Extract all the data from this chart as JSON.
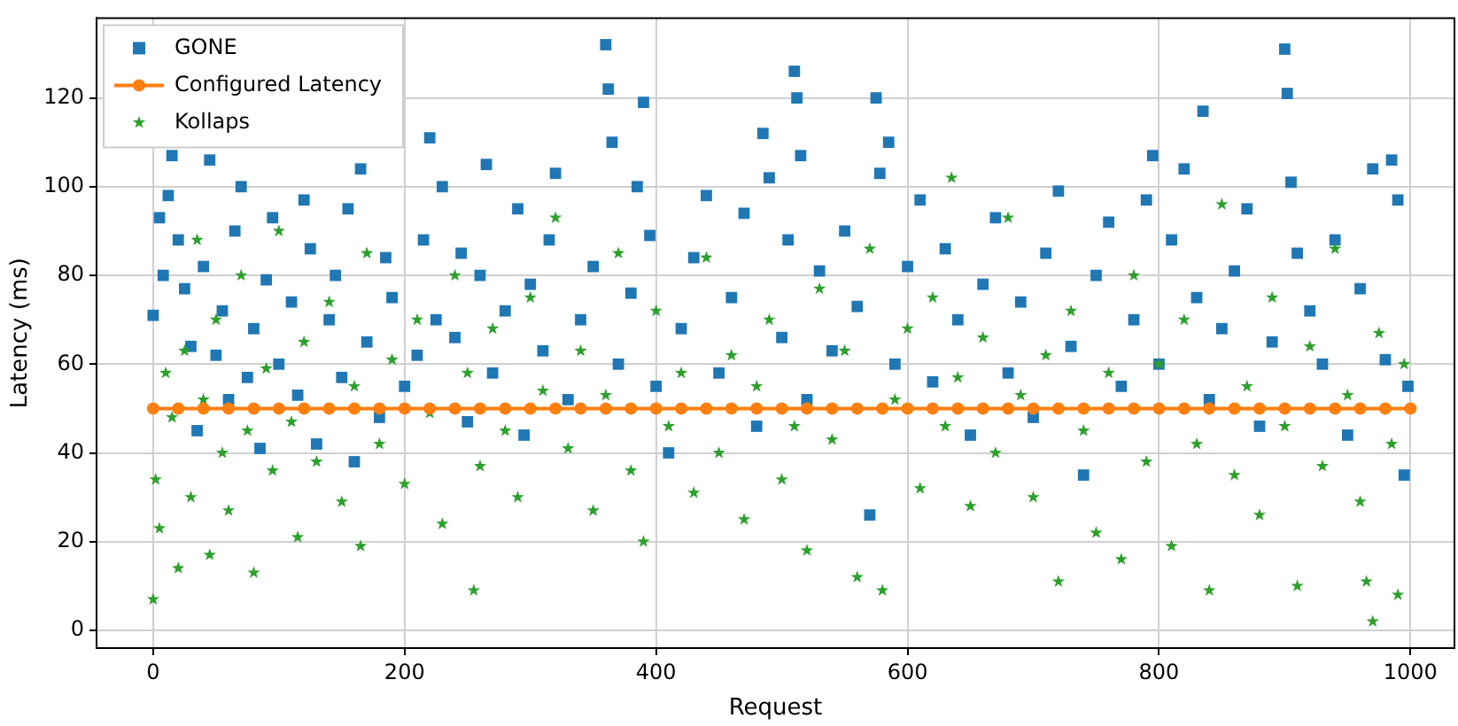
{
  "chart_data": {
    "type": "scatter",
    "xlabel": "Request",
    "ylabel": "Latency (ms)",
    "xlim": [
      -45,
      1035
    ],
    "ylim": [
      -4,
      138
    ],
    "xticks": [
      0,
      200,
      400,
      600,
      800,
      1000
    ],
    "yticks": [
      0,
      20,
      40,
      60,
      80,
      100,
      120
    ],
    "grid": true,
    "legend": "top left",
    "series": [
      {
        "name": "GONE",
        "color": "#1f77b4",
        "marker": "square",
        "x": [
          0,
          5,
          8,
          12,
          15,
          20,
          25,
          30,
          35,
          40,
          45,
          50,
          55,
          60,
          65,
          70,
          75,
          80,
          85,
          90,
          95,
          100,
          110,
          115,
          120,
          125,
          130,
          140,
          145,
          150,
          155,
          160,
          165,
          170,
          180,
          185,
          190,
          200,
          210,
          215,
          220,
          225,
          230,
          240,
          245,
          250,
          260,
          265,
          270,
          280,
          290,
          295,
          300,
          310,
          315,
          320,
          330,
          340,
          350,
          360,
          362,
          365,
          370,
          380,
          385,
          390,
          395,
          400,
          410,
          420,
          430,
          440,
          450,
          460,
          470,
          480,
          485,
          490,
          500,
          505,
          510,
          512,
          515,
          520,
          530,
          540,
          550,
          560,
          570,
          575,
          578,
          585,
          590,
          600,
          610,
          620,
          630,
          640,
          650,
          660,
          670,
          680,
          690,
          700,
          710,
          720,
          730,
          740,
          750,
          760,
          770,
          780,
          790,
          795,
          800,
          810,
          820,
          830,
          835,
          840,
          850,
          860,
          870,
          880,
          890,
          900,
          902,
          905,
          910,
          920,
          930,
          940,
          950,
          960,
          970,
          980,
          985,
          990,
          995,
          998
        ],
        "values": [
          71,
          93,
          80,
          98,
          107,
          88,
          77,
          64,
          45,
          82,
          106,
          62,
          72,
          52,
          90,
          100,
          57,
          68,
          41,
          79,
          93,
          60,
          74,
          53,
          97,
          86,
          42,
          70,
          80,
          57,
          95,
          38,
          104,
          65,
          48,
          84,
          75,
          55,
          62,
          88,
          111,
          70,
          100,
          66,
          85,
          47,
          80,
          105,
          58,
          72,
          95,
          44,
          78,
          63,
          88,
          103,
          52,
          70,
          82,
          132,
          122,
          110,
          60,
          76,
          100,
          119,
          89,
          55,
          40,
          68,
          84,
          98,
          58,
          75,
          94,
          46,
          112,
          102,
          66,
          88,
          126,
          120,
          107,
          52,
          81,
          63,
          90,
          73,
          26,
          120,
          103,
          110,
          60,
          82,
          97,
          56,
          86,
          70,
          44,
          78,
          93,
          58,
          74,
          48,
          85,
          99,
          64,
          35,
          80,
          92,
          55,
          70,
          97,
          107,
          60,
          88,
          104,
          75,
          117,
          52,
          68,
          81,
          95,
          46,
          65,
          131,
          121,
          101,
          85,
          72,
          60,
          88,
          44,
          77,
          104,
          61,
          106,
          97,
          35,
          55
        ]
      },
      {
        "name": "Configured Latency",
        "type": "line",
        "color": "#ff7f0e",
        "marker": "circle",
        "line_style": "solid",
        "x": [
          0,
          20,
          40,
          60,
          80,
          100,
          120,
          140,
          160,
          180,
          200,
          220,
          240,
          260,
          280,
          300,
          320,
          340,
          360,
          380,
          400,
          420,
          440,
          460,
          480,
          500,
          520,
          540,
          560,
          580,
          600,
          620,
          640,
          660,
          680,
          700,
          720,
          740,
          760,
          780,
          800,
          820,
          840,
          860,
          880,
          900,
          920,
          940,
          960,
          980,
          1000
        ],
        "values": [
          50,
          50,
          50,
          50,
          50,
          50,
          50,
          50,
          50,
          50,
          50,
          50,
          50,
          50,
          50,
          50,
          50,
          50,
          50,
          50,
          50,
          50,
          50,
          50,
          50,
          50,
          50,
          50,
          50,
          50,
          50,
          50,
          50,
          50,
          50,
          50,
          50,
          50,
          50,
          50,
          50,
          50,
          50,
          50,
          50,
          50,
          50,
          50,
          50,
          50,
          50
        ]
      },
      {
        "name": "Kollaps",
        "color": "#2ca02c",
        "marker": "star",
        "x": [
          0,
          2,
          5,
          10,
          15,
          20,
          25,
          30,
          35,
          40,
          45,
          50,
          55,
          60,
          70,
          75,
          80,
          90,
          95,
          100,
          110,
          115,
          120,
          130,
          140,
          150,
          160,
          165,
          170,
          180,
          190,
          200,
          210,
          220,
          230,
          240,
          250,
          255,
          260,
          270,
          280,
          290,
          300,
          310,
          320,
          330,
          340,
          350,
          360,
          370,
          380,
          390,
          400,
          410,
          420,
          430,
          440,
          450,
          460,
          470,
          480,
          490,
          500,
          510,
          520,
          530,
          540,
          550,
          560,
          570,
          580,
          590,
          600,
          610,
          620,
          630,
          635,
          640,
          650,
          660,
          670,
          680,
          690,
          700,
          710,
          720,
          730,
          740,
          750,
          760,
          770,
          780,
          790,
          800,
          810,
          820,
          830,
          840,
          850,
          860,
          870,
          880,
          890,
          900,
          910,
          920,
          930,
          940,
          950,
          960,
          965,
          970,
          975,
          985,
          990,
          995
        ],
        "values": [
          7,
          34,
          23,
          58,
          48,
          14,
          63,
          30,
          88,
          52,
          17,
          70,
          40,
          27,
          80,
          45,
          13,
          59,
          36,
          90,
          47,
          21,
          65,
          38,
          74,
          29,
          55,
          19,
          85,
          42,
          61,
          33,
          70,
          49,
          24,
          80,
          58,
          9,
          37,
          68,
          45,
          30,
          75,
          54,
          93,
          41,
          63,
          27,
          53,
          85,
          36,
          20,
          72,
          46,
          58,
          31,
          84,
          40,
          62,
          25,
          55,
          70,
          34,
          46,
          18,
          77,
          43,
          63,
          12,
          86,
          9,
          52,
          68,
          32,
          75,
          46,
          102,
          57,
          28,
          66,
          40,
          93,
          53,
          30,
          62,
          11,
          72,
          45,
          22,
          58,
          16,
          80,
          38,
          60,
          19,
          70,
          42,
          9,
          96,
          35,
          55,
          26,
          75,
          46,
          10,
          64,
          37,
          86,
          53,
          29,
          11,
          2,
          67,
          42,
          8,
          60
        ]
      }
    ]
  }
}
